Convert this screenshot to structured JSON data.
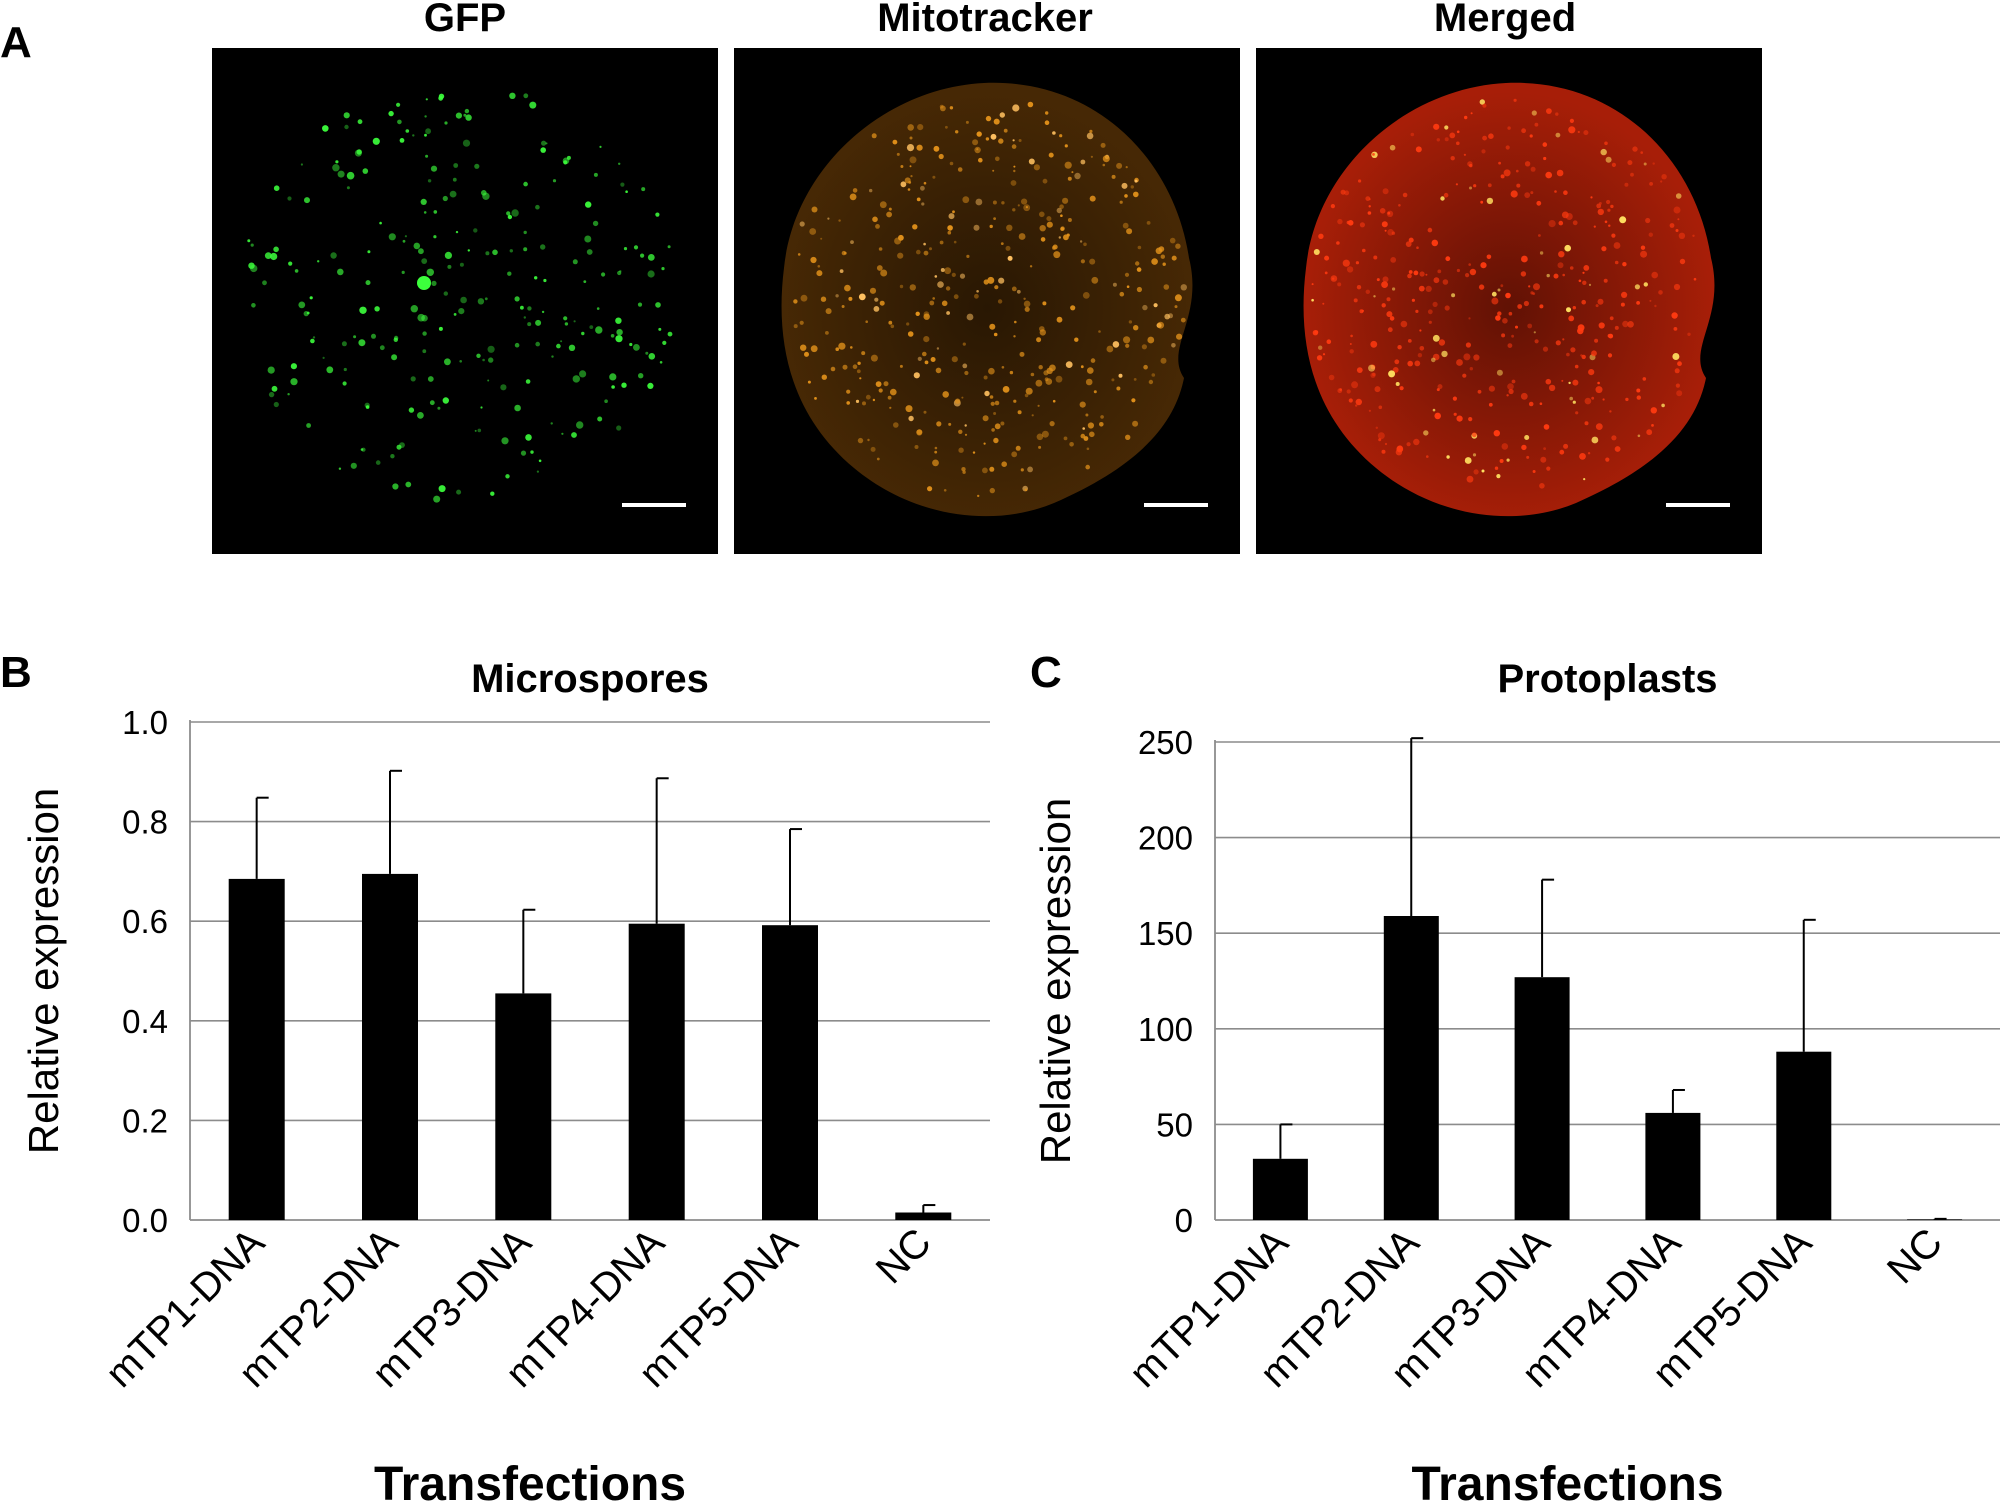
{
  "panels": {
    "A": "A",
    "B": "B",
    "C": "C"
  },
  "images": [
    {
      "title": "GFP",
      "colors": {
        "dot": "#3cff3c",
        "bg": "#000000"
      }
    },
    {
      "title": "Mitotracker",
      "colors": {
        "dot": "#e0901a",
        "bg": "#000000"
      }
    },
    {
      "title": "Merged",
      "colors": {
        "dot": "#ff3a10",
        "bg": "#000000"
      }
    }
  ],
  "chart_data": [
    {
      "type": "bar",
      "title": "Microspores",
      "xlabel": "Transfections",
      "ylabel": "Relative expression",
      "categories": [
        "mTP1-DNA",
        "mTP2-DNA",
        "mTP3-DNA",
        "mTP4-DNA",
        "mTP5-DNA",
        "NC"
      ],
      "values": [
        0.685,
        0.695,
        0.455,
        0.595,
        0.592,
        0.015
      ],
      "errors": [
        0.163,
        0.207,
        0.168,
        0.292,
        0.193,
        0.015
      ],
      "ylim": [
        0,
        1.0
      ],
      "yticks": [
        "0.0",
        "0.2",
        "0.4",
        "0.6",
        "0.8",
        "1.0"
      ],
      "grid": true,
      "bar_color": "#000000"
    },
    {
      "type": "bar",
      "title": "Protoplasts",
      "xlabel": "Transfections",
      "ylabel": "Relative expression",
      "categories": [
        "mTP1-DNA",
        "mTP2-DNA",
        "mTP3-DNA",
        "mTP4-DNA",
        "mTP5-DNA",
        "NC"
      ],
      "values": [
        32,
        159,
        127,
        56,
        88,
        0.3
      ],
      "errors": [
        18,
        93,
        51,
        12,
        69,
        0.3
      ],
      "ylim": [
        0,
        250
      ],
      "yticks": [
        "0",
        "50",
        "100",
        "150",
        "200",
        "250"
      ],
      "grid": true,
      "bar_color": "#000000"
    }
  ]
}
